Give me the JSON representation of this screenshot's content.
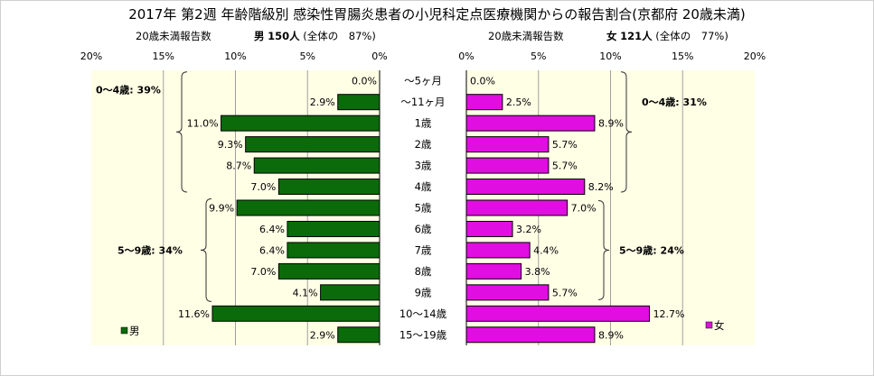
{
  "title": "2017年 第2週 年齢階級別 感染性胃腸炎患者の小児科定点医療機関からの報告割合(京都府 20歳未満)",
  "header_left": {
    "label": "20歳未満報告数",
    "sex": "男",
    "count": "150人",
    "share": "(全体の　87%)"
  },
  "header_right": {
    "label": "20歳未満報告数",
    "sex": "女",
    "count": "121人",
    "share": "(全体の　77%)"
  },
  "chart_data": {
    "type": "bar",
    "orientation": "horizontal",
    "layout": "population-pyramid",
    "title": "2017年 第2週 年齢階級別 感染性胃腸炎患者の小児科定点医療機関からの報告割合(京都府 20歳未満)",
    "categories": [
      "～5ヶ月",
      "～11ヶ月",
      "1歳",
      "2歳",
      "3歳",
      "4歳",
      "5歳",
      "6歳",
      "7歳",
      "8歳",
      "9歳",
      "10～14歳",
      "15～19歳"
    ],
    "xlim": [
      0,
      20
    ],
    "ticks": [
      "20%",
      "15%",
      "10%",
      "5%",
      "0%",
      "0%",
      "5%",
      "10%",
      "15%",
      "20%"
    ],
    "grid": true,
    "series": [
      {
        "name": "男",
        "color": "#0b6b0b",
        "side": "left",
        "values": [
          0.0,
          2.9,
          11.0,
          9.3,
          8.7,
          7.0,
          9.9,
          6.4,
          6.4,
          7.0,
          4.1,
          11.6,
          2.9
        ],
        "labels": [
          "0.0%",
          "2.9%",
          "11.0%",
          "9.3%",
          "8.7%",
          "7.0%",
          "9.9%",
          "6.4%",
          "6.4%",
          "7.0%",
          "4.1%",
          "11.6%",
          "2.9%"
        ]
      },
      {
        "name": "女",
        "color": "#e10ee1",
        "side": "right",
        "values": [
          0.0,
          2.5,
          8.9,
          5.7,
          5.7,
          8.2,
          7.0,
          3.2,
          4.4,
          3.8,
          5.7,
          12.7,
          8.9
        ],
        "labels": [
          "0.0%",
          "2.5%",
          "8.9%",
          "5.7%",
          "5.7%",
          "8.2%",
          "7.0%",
          "3.2%",
          "4.4%",
          "3.8%",
          "5.7%",
          "12.7%",
          "8.9%"
        ]
      }
    ],
    "annotations": {
      "male_0_4": "0～4歳: 39%",
      "male_5_9": "5～9歳: 34%",
      "female_0_4": "0～4歳: 31%",
      "female_5_9": "5～9歳: 24%"
    },
    "legend": {
      "male": "男",
      "female": "女",
      "male_placement": "bottom-left",
      "female_placement": "bottom-right"
    },
    "colors": {
      "plot_bg": "#ffffe6",
      "male": "#0b6b0b",
      "female": "#e10ee1",
      "grid": "#a0a0a0"
    }
  }
}
